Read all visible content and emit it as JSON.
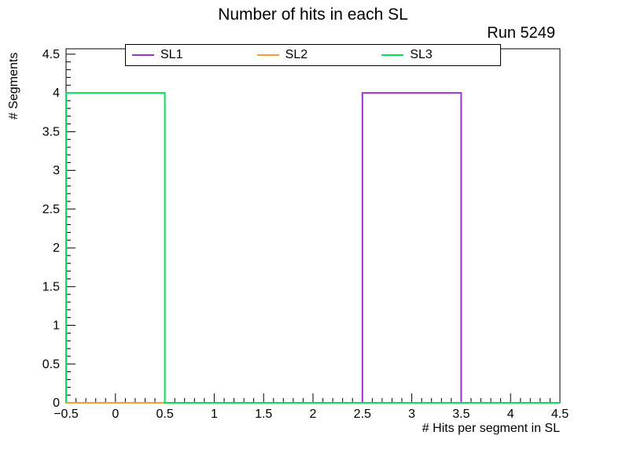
{
  "chart_data": {
    "type": "line",
    "subtype": "step-histogram-outline",
    "title": "Number of hits in each SL",
    "annotation": "Run 5249",
    "xlabel": "# Hits per segment in SL",
    "ylabel": "# Segments",
    "xlim": [
      -0.5,
      4.5
    ],
    "ylim": [
      0,
      4.57
    ],
    "grid": false,
    "legend_position": "top-inside",
    "bin_edges": [
      -0.5,
      0.5,
      1.5,
      2.5,
      3.5,
      4.5
    ],
    "bin_centers": [
      0,
      1,
      2,
      3,
      4
    ],
    "series": [
      {
        "name": "SL1",
        "color": "#9933cc",
        "values": [
          0,
          0,
          0,
          4,
          0
        ]
      },
      {
        "name": "SL2",
        "color": "#ff9933",
        "values": [
          0,
          0,
          0,
          0,
          0
        ]
      },
      {
        "name": "SL3",
        "color": "#00e652",
        "values": [
          4,
          0,
          0,
          0,
          0
        ]
      }
    ],
    "x_ticks": {
      "minor_step": 0.1,
      "values": [
        -0.5,
        0,
        0.5,
        1,
        1.5,
        2,
        2.5,
        3,
        3.5,
        4,
        4.5
      ],
      "labels": [
        "−0.5",
        "0",
        "0.5",
        "1",
        "1.5",
        "2",
        "2.5",
        "3",
        "3.5",
        "4",
        "4.5"
      ]
    },
    "y_ticks": {
      "minor_step": 0.1,
      "values": [
        0,
        0.5,
        1,
        1.5,
        2,
        2.5,
        3,
        3.5,
        4,
        4.5
      ],
      "labels": [
        "0",
        "0.5",
        "1",
        "1.5",
        "2",
        "2.5",
        "3",
        "3.5",
        "4",
        "4.5"
      ]
    },
    "colors": {
      "frame": "#000000",
      "background": "#ffffff",
      "text": "#000000"
    }
  }
}
